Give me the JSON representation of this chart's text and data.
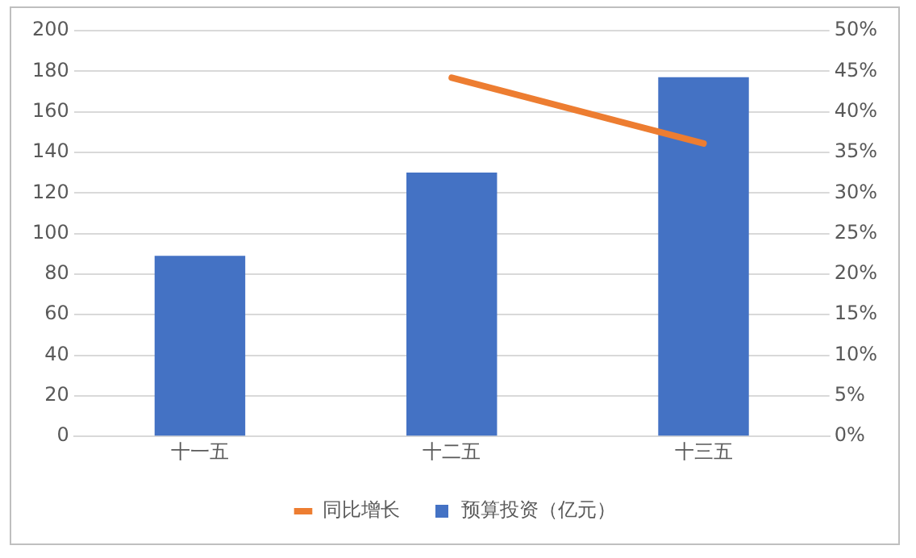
{
  "chart_data": {
    "type": "bar",
    "categories": [
      "十一五",
      "十二五",
      "十三五"
    ],
    "series": [
      {
        "name": "预算投资（亿元）",
        "color": "#4472c4",
        "values": [
          89,
          130,
          177
        ]
      },
      {
        "name": "同比增长",
        "type": "line",
        "axis": "y2",
        "color": "#ed7d31",
        "values": [
          null,
          44.2,
          36.1
        ]
      }
    ],
    "ylim": [
      0,
      200
    ],
    "yticks": [
      0,
      20,
      40,
      60,
      80,
      100,
      120,
      140,
      160,
      180,
      200
    ],
    "y2lim": [
      0,
      50
    ],
    "y2ticks": [
      {
        "value": 0,
        "label": "0%"
      },
      {
        "value": 5,
        "label": "5%"
      },
      {
        "value": 10,
        "label": "10%"
      },
      {
        "value": 15,
        "label": "15%"
      },
      {
        "value": 20,
        "label": "20%"
      },
      {
        "value": 25,
        "label": "25%"
      },
      {
        "value": 30,
        "label": "30%"
      },
      {
        "value": 35,
        "label": "35%"
      },
      {
        "value": 40,
        "label": "40%"
      },
      {
        "value": 45,
        "label": "45%"
      },
      {
        "value": 50,
        "label": "50%"
      }
    ],
    "grid": "y",
    "legend": "bottom",
    "marker": "none"
  }
}
